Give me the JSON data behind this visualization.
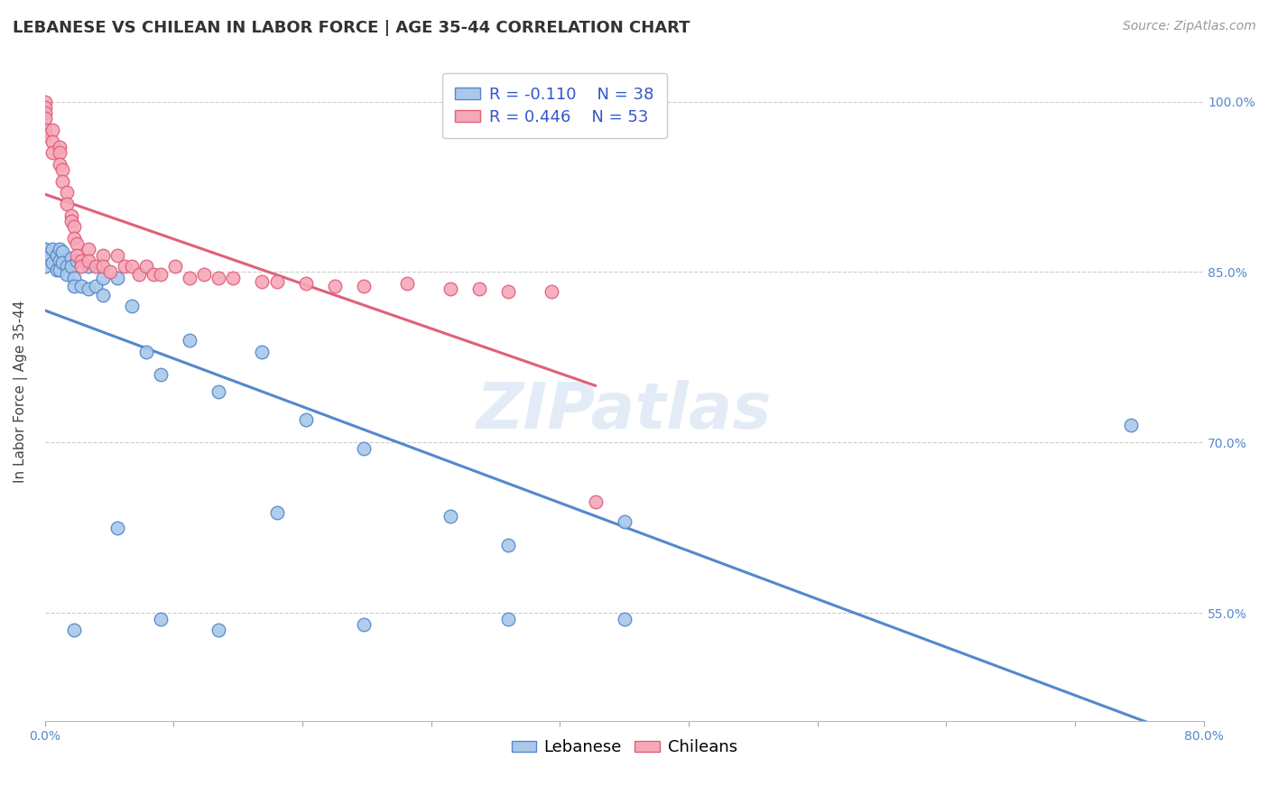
{
  "title": "LEBANESE VS CHILEAN IN LABOR FORCE | AGE 35-44 CORRELATION CHART",
  "source": "Source: ZipAtlas.com",
  "ylabel": "In Labor Force | Age 35-44",
  "watermark": "ZIPatlas",
  "lebanese_color": "#aac8ea",
  "chilean_color": "#f5a8b8",
  "lebanese_line_color": "#5588cc",
  "chilean_line_color": "#e0607a",
  "background_color": "#ffffff",
  "xmin": 0.0,
  "xmax": 0.8,
  "ymin": 0.455,
  "ymax": 1.035,
  "lebanese_x": [
    0.0,
    0.0,
    0.0,
    0.005,
    0.005,
    0.008,
    0.008,
    0.01,
    0.01,
    0.01,
    0.012,
    0.012,
    0.015,
    0.015,
    0.018,
    0.018,
    0.02,
    0.02,
    0.022,
    0.025,
    0.03,
    0.03,
    0.035,
    0.04,
    0.04,
    0.05,
    0.06,
    0.07,
    0.08,
    0.1,
    0.12,
    0.15,
    0.18,
    0.22,
    0.28,
    0.32,
    0.4,
    0.75
  ],
  "lebanese_y": [
    0.87,
    0.862,
    0.855,
    0.87,
    0.858,
    0.865,
    0.852,
    0.87,
    0.86,
    0.852,
    0.868,
    0.858,
    0.855,
    0.848,
    0.862,
    0.855,
    0.845,
    0.838,
    0.86,
    0.838,
    0.855,
    0.835,
    0.838,
    0.845,
    0.83,
    0.845,
    0.82,
    0.78,
    0.76,
    0.79,
    0.745,
    0.78,
    0.72,
    0.695,
    0.635,
    0.61,
    0.63,
    0.715
  ],
  "lebanese_x2": [
    0.02,
    0.05,
    0.08,
    0.12,
    0.16,
    0.22,
    0.32,
    0.4
  ],
  "lebanese_y2": [
    0.535,
    0.625,
    0.545,
    0.535,
    0.638,
    0.54,
    0.545,
    0.545
  ],
  "chilean_x": [
    0.0,
    0.0,
    0.0,
    0.0,
    0.0,
    0.0,
    0.005,
    0.005,
    0.005,
    0.01,
    0.01,
    0.01,
    0.012,
    0.012,
    0.015,
    0.015,
    0.018,
    0.018,
    0.02,
    0.02,
    0.022,
    0.022,
    0.025,
    0.025,
    0.03,
    0.03,
    0.035,
    0.04,
    0.04,
    0.045,
    0.05,
    0.055,
    0.06,
    0.065,
    0.07,
    0.075,
    0.08,
    0.09,
    0.1,
    0.11,
    0.12,
    0.13,
    0.15,
    0.16,
    0.18,
    0.2,
    0.22,
    0.25,
    0.28,
    0.3,
    0.32,
    0.35,
    0.38
  ],
  "chilean_y": [
    1.0,
    0.995,
    0.99,
    0.985,
    0.975,
    0.97,
    0.975,
    0.965,
    0.955,
    0.96,
    0.955,
    0.945,
    0.94,
    0.93,
    0.92,
    0.91,
    0.9,
    0.895,
    0.89,
    0.88,
    0.875,
    0.865,
    0.86,
    0.855,
    0.87,
    0.86,
    0.855,
    0.865,
    0.855,
    0.85,
    0.865,
    0.855,
    0.855,
    0.848,
    0.855,
    0.848,
    0.848,
    0.855,
    0.845,
    0.848,
    0.845,
    0.845,
    0.842,
    0.842,
    0.84,
    0.838,
    0.838,
    0.84,
    0.835,
    0.835,
    0.833,
    0.833,
    0.648
  ],
  "legend_r_leb": "-0.110",
  "legend_n_leb": "38",
  "legend_r_chi": "0.446",
  "legend_n_chi": "53",
  "title_fontsize": 13,
  "source_fontsize": 10,
  "axis_label_fontsize": 11,
  "tick_fontsize": 10,
  "legend_fontsize": 13,
  "watermark_fontsize": 52
}
